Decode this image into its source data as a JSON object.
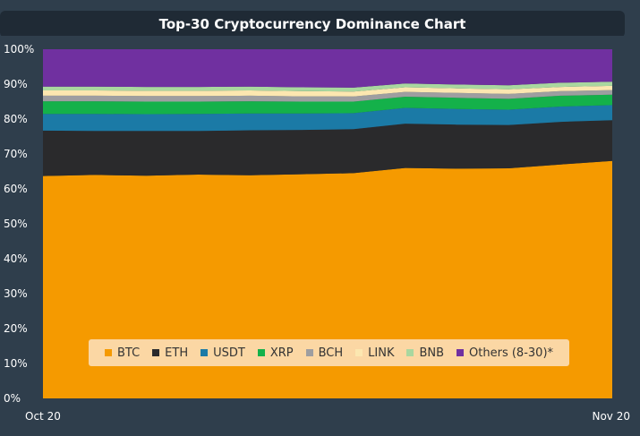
{
  "chart_data": {
    "type": "area",
    "stacked": true,
    "title": "Top-30 Cryptocurrency Dominance Chart",
    "x_labels": [
      "Oct 20",
      "Nov 20"
    ],
    "ylim": [
      0,
      100
    ],
    "yticks": [
      "0%",
      "10%",
      "20%",
      "30%",
      "40%",
      "50%",
      "60%",
      "70%",
      "80%",
      "90%",
      "100%"
    ],
    "legend_position": "bottom-center",
    "grid": false,
    "series": [
      {
        "name": "BTC",
        "color": "#f59a00",
        "values": [
          63.7,
          64.0,
          63.8,
          64.1,
          63.9,
          64.2,
          64.5,
          66.0,
          65.8,
          65.9,
          67.0,
          68.0
        ]
      },
      {
        "name": "ETH",
        "color": "#2a2a2c",
        "values": [
          13.0,
          12.6,
          12.8,
          12.5,
          12.9,
          12.7,
          12.6,
          12.7,
          12.6,
          12.4,
          12.2,
          11.7
        ]
      },
      {
        "name": "USDT",
        "color": "#1b7aa6",
        "values": [
          4.8,
          4.9,
          4.8,
          4.9,
          4.8,
          4.7,
          4.6,
          4.5,
          4.5,
          4.4,
          4.4,
          4.3
        ]
      },
      {
        "name": "XRP",
        "color": "#14b14a",
        "values": [
          3.6,
          3.6,
          3.6,
          3.5,
          3.5,
          3.4,
          3.3,
          3.2,
          3.2,
          3.1,
          3.1,
          3.0
        ]
      },
      {
        "name": "BCH",
        "color": "#9e9ea0",
        "values": [
          1.6,
          1.6,
          1.6,
          1.6,
          1.6,
          1.5,
          1.5,
          1.4,
          1.4,
          1.4,
          1.3,
          1.3
        ]
      },
      {
        "name": "LINK",
        "color": "#fce7b0",
        "values": [
          1.5,
          1.5,
          1.5,
          1.5,
          1.5,
          1.5,
          1.4,
          1.3,
          1.3,
          1.3,
          1.2,
          1.2
        ]
      },
      {
        "name": "BNB",
        "color": "#a9d79f",
        "values": [
          1.1,
          1.1,
          1.1,
          1.1,
          1.1,
          1.1,
          1.1,
          1.1,
          1.1,
          1.2,
          1.2,
          1.2
        ]
      },
      {
        "name": "Others (8-30)*",
        "color": "#7030a0",
        "values": [
          10.7,
          10.7,
          10.8,
          10.8,
          10.7,
          10.9,
          11.0,
          9.8,
          10.1,
          10.3,
          9.6,
          9.3
        ]
      }
    ]
  }
}
